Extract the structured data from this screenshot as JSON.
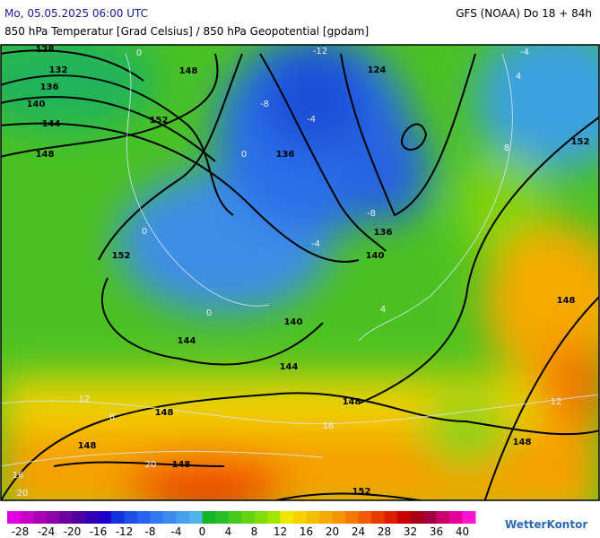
{
  "header": {
    "datetime": "Mo, 05.05.2025 06:00 UTC",
    "model": "GFS (NOAA) Do 18 + 84h",
    "subtitle": "850 hPa Temperatur [Grad Celsius] / 850 hPa Geopotential [gpdam]"
  },
  "map": {
    "isohypse_labels": [
      128,
      132,
      136,
      140,
      144,
      148,
      148,
      152,
      152,
      136,
      124,
      152,
      136,
      140,
      140,
      144,
      144,
      148,
      148,
      148,
      148,
      148,
      148,
      152
    ],
    "isotherm_labels": [
      0,
      -12,
      -4,
      -8,
      -4,
      0,
      -4,
      -8,
      4,
      8,
      0,
      4,
      8,
      12,
      16,
      20,
      20,
      12,
      16,
      0
    ]
  },
  "colorbar": {
    "range": [
      -30,
      42
    ],
    "ticks": [
      -28,
      -24,
      -20,
      -16,
      -12,
      -8,
      -4,
      0,
      4,
      8,
      12,
      16,
      20,
      24,
      28,
      32,
      36,
      40
    ],
    "colors": [
      "#e100e1",
      "#c800c8",
      "#aa00b4",
      "#8c00a5",
      "#6e00a0",
      "#5000a0",
      "#3200b4",
      "#1e00c8",
      "#1432dc",
      "#1e50e6",
      "#2864f0",
      "#3278f0",
      "#3c8cf0",
      "#46a0f0",
      "#50b4e6",
      "#14b428",
      "#28be28",
      "#46c81e",
      "#64d214",
      "#82dc0a",
      "#a0e600",
      "#f0e600",
      "#f5d200",
      "#f5be00",
      "#f5aa00",
      "#f59600",
      "#f57800",
      "#f05a00",
      "#e63c00",
      "#dc1e00",
      "#c80000",
      "#aa0014",
      "#a0003c",
      "#c8006e",
      "#e6009b",
      "#ff14d2"
    ]
  },
  "logo": "WetterKontor"
}
